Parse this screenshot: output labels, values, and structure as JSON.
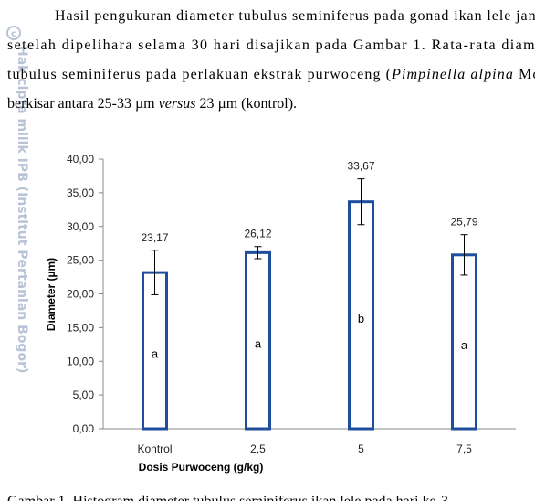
{
  "paragraph": {
    "lines": [
      [
        "Hasil pengukuran diameter tubulus seminiferus pada gonad ikan lele janta"
      ],
      [
        "setelah dipelihara selama 30 hari disajikan pada Gambar 1. Rata-rata diamet"
      ],
      [
        "tubulus seminiferus pada perlakuan ekstrak purwoceng (",
        "Pimpinella alpina",
        " Molk"
      ],
      [
        "berkisar antara 25-33 µm ",
        "versus",
        " 23 µm (kontrol)."
      ]
    ]
  },
  "watermark": "Hak cipta milik IPB (Institut Pertanian Bogor)",
  "chart_data": {
    "type": "bar",
    "categories": [
      "Kontrol",
      "2,5",
      "5",
      "7,5"
    ],
    "values": [
      23.17,
      26.12,
      33.67,
      25.79
    ],
    "value_labels": [
      "23,17",
      "26,12",
      "33,67",
      "25,79"
    ],
    "errors": [
      3.3,
      0.9,
      3.4,
      3.0
    ],
    "annotations": [
      "a",
      "a",
      "b",
      "a"
    ],
    "color": "#1f4e9c",
    "ylim": [
      0,
      40
    ],
    "yticks": [
      {
        "value": 0,
        "label": "0,00"
      },
      {
        "value": 5,
        "label": "5,00"
      },
      {
        "value": 10,
        "label": "10,00"
      },
      {
        "value": 15,
        "label": "15,00"
      },
      {
        "value": 20,
        "label": "20,00"
      },
      {
        "value": 25,
        "label": "25,00"
      },
      {
        "value": 30,
        "label": "30,00"
      },
      {
        "value": 35,
        "label": "35,00"
      },
      {
        "value": 40,
        "label": "40,00"
      }
    ],
    "ylabel": "Diameter (µm)",
    "xlabel": "Dosis Purwoceng (g/kg)"
  },
  "caption": "Gambar 1. Histogram diameter tubulus seminiferus ikan lele pada hari ke-3"
}
